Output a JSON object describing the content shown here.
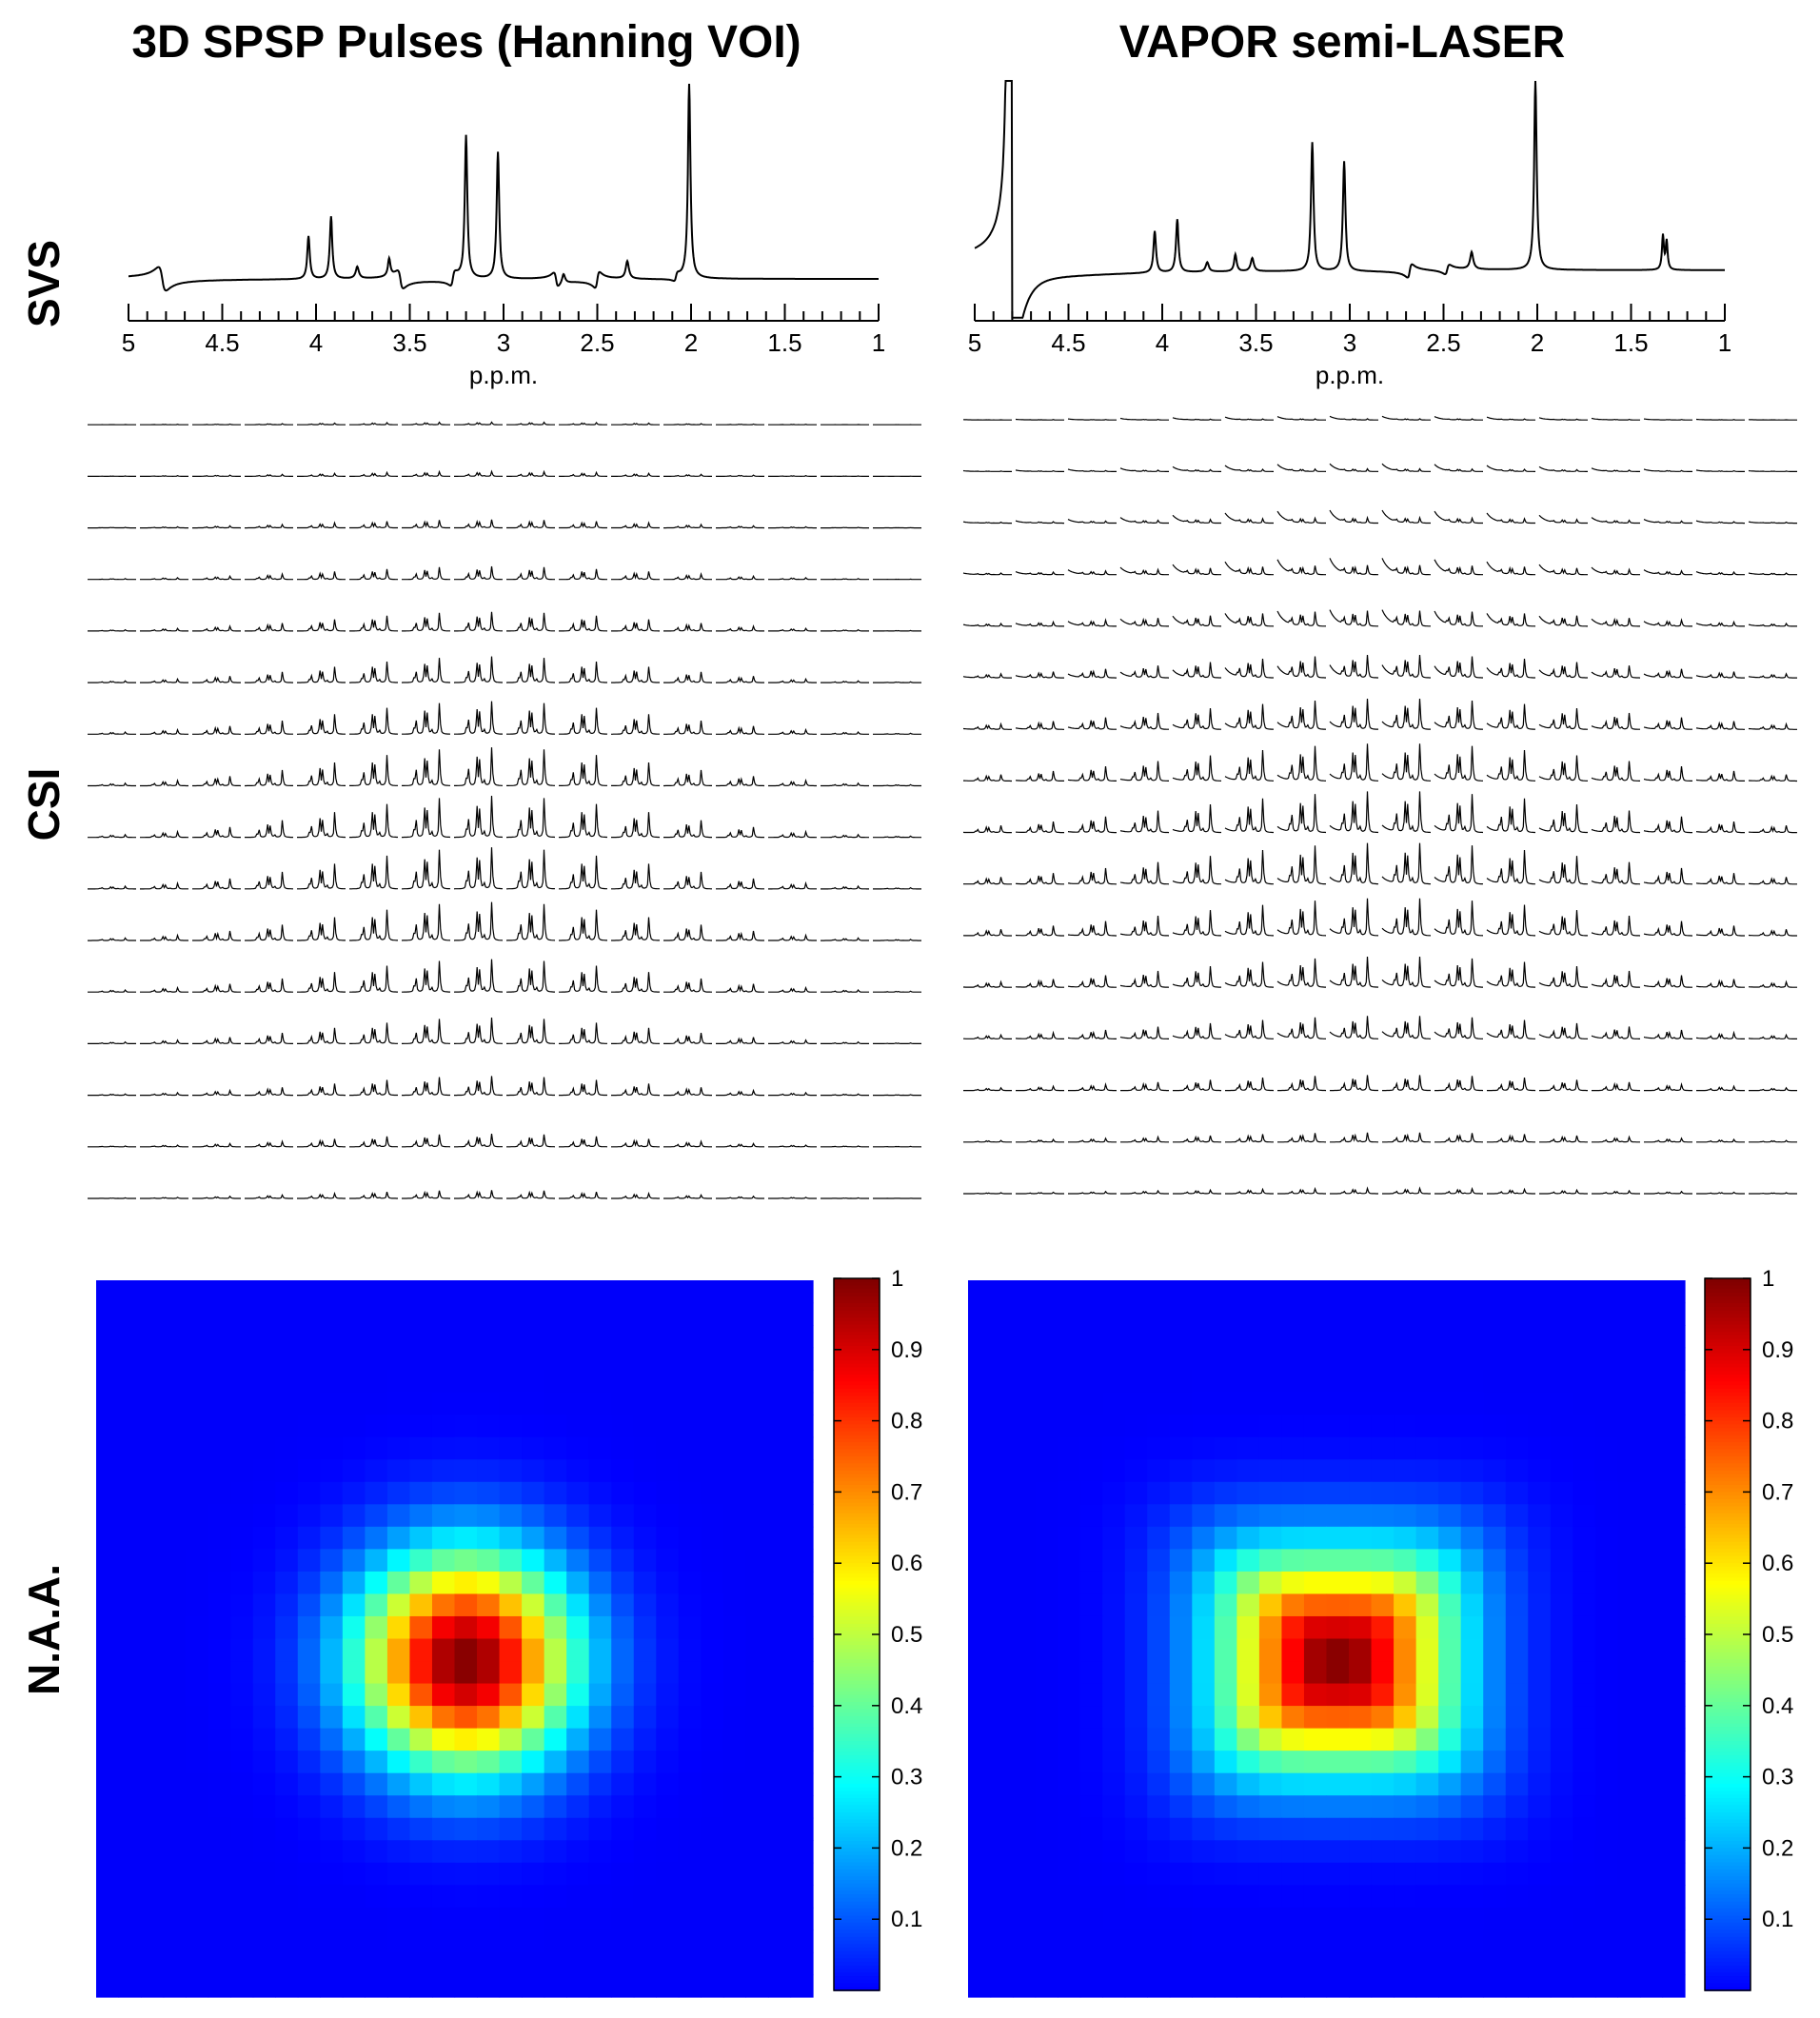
{
  "figure": {
    "columns": [
      {
        "title": "3D SPSP Pulses (Hanning VOI)"
      },
      {
        "title": "VAPOR semi-LASER"
      }
    ],
    "row_labels": [
      "SVS",
      "CSI",
      "N.A.A."
    ]
  },
  "chart_data": [
    {
      "type": "line",
      "panel": "SVS - 3D SPSP Pulses (Hanning VOI)",
      "xlabel": "p.p.m.",
      "xlim": [
        5,
        1
      ],
      "x_reversed": true,
      "xticks": [
        5,
        4.5,
        4,
        3.5,
        3,
        2.5,
        2,
        1.5,
        1
      ],
      "xtick_labels": [
        "5",
        "4.5",
        "4",
        "3.5",
        "3",
        "2.5",
        "2",
        "1.5",
        "1"
      ],
      "minor_tick_step": 0.1,
      "ylim": [
        -0.12,
        1.0
      ],
      "baseline": 0.0,
      "peaks": [
        {
          "ppm": 2.01,
          "height": 1.0,
          "width": 0.008
        },
        {
          "ppm": 3.03,
          "height": 0.65,
          "width": 0.008
        },
        {
          "ppm": 3.2,
          "height": 0.73,
          "width": 0.008
        },
        {
          "ppm": 3.92,
          "height": 0.32,
          "width": 0.008
        },
        {
          "ppm": 4.04,
          "height": 0.22,
          "width": 0.008
        },
        {
          "ppm": 3.78,
          "height": 0.06,
          "width": 0.01
        },
        {
          "ppm": 3.61,
          "height": 0.09,
          "width": 0.008
        },
        {
          "ppm": 2.34,
          "height": 0.09,
          "width": 0.01
        },
        {
          "ppm": 2.68,
          "height": 0.05,
          "width": 0.01
        }
      ],
      "dispersive": [
        {
          "ppm": 4.82,
          "amp": 0.12,
          "width": 0.02
        },
        {
          "ppm": 3.55,
          "amp": 0.09,
          "width": 0.015
        },
        {
          "ppm": 3.27,
          "amp": -0.07,
          "width": 0.012
        },
        {
          "ppm": 2.72,
          "amp": 0.07,
          "width": 0.012
        },
        {
          "ppm": 2.5,
          "amp": -0.08,
          "width": 0.012
        },
        {
          "ppm": 2.08,
          "amp": -0.04,
          "width": 0.01
        }
      ]
    },
    {
      "type": "line",
      "panel": "SVS - VAPOR semi-LASER",
      "xlabel": "p.p.m.",
      "xlim": [
        5,
        1
      ],
      "x_reversed": true,
      "xticks": [
        5,
        4.5,
        4,
        3.5,
        3,
        2.5,
        2,
        1.5,
        1
      ],
      "xtick_labels": [
        "5",
        "4.5",
        "4",
        "3.5",
        "3",
        "2.5",
        "2",
        "1.5",
        "1"
      ],
      "minor_tick_step": 0.1,
      "ylim": [
        -0.25,
        1.0
      ],
      "baseline": 0.0,
      "water_ppm": 4.82,
      "peaks": [
        {
          "ppm": 2.01,
          "height": 1.0,
          "width": 0.008
        },
        {
          "ppm": 3.03,
          "height": 0.58,
          "width": 0.008
        },
        {
          "ppm": 3.2,
          "height": 0.68,
          "width": 0.008
        },
        {
          "ppm": 3.92,
          "height": 0.28,
          "width": 0.008
        },
        {
          "ppm": 4.04,
          "height": 0.22,
          "width": 0.008
        },
        {
          "ppm": 1.33,
          "height": 0.18,
          "width": 0.006
        },
        {
          "ppm": 1.31,
          "height": 0.15,
          "width": 0.006
        },
        {
          "ppm": 3.61,
          "height": 0.09,
          "width": 0.008
        },
        {
          "ppm": 3.52,
          "height": 0.07,
          "width": 0.01
        },
        {
          "ppm": 2.35,
          "height": 0.09,
          "width": 0.01
        },
        {
          "ppm": 3.76,
          "height": 0.05,
          "width": 0.01
        }
      ],
      "dispersive": [
        {
          "ppm": 2.68,
          "amp": -0.07,
          "width": 0.012
        },
        {
          "ppm": 2.48,
          "amp": -0.05,
          "width": 0.012
        }
      ]
    },
    {
      "type": "line",
      "panel": "CSI - 3D SPSP Pulses (Hanning VOI)",
      "grid_rows": 16,
      "grid_cols": 16,
      "description": "16x16 grid of voxel spectra; signal concentrated in central region",
      "amplitude_center": {
        "row": 8.5,
        "col": 7.0
      },
      "amplitude_sigma": {
        "row": 3.6,
        "col": 3.0
      }
    },
    {
      "type": "line",
      "panel": "CSI - VAPOR semi-LASER",
      "grid_rows": 16,
      "grid_cols": 16,
      "description": "16x16 grid of voxel spectra with water tail residue in upper-central voxels",
      "amplitude_center": {
        "row": 8.5,
        "col": 7.5
      },
      "amplitude_sigma": {
        "row": 3.2,
        "col": 4.0
      }
    },
    {
      "type": "heatmap",
      "panel": "N.A.A. - 3D SPSP Pulses (Hanning VOI)",
      "grid_size": 32,
      "center": {
        "row": 16.5,
        "col": 16.0
      },
      "sigma": 3.4,
      "colormap": "jet",
      "clim": [
        0,
        1
      ],
      "colorbar_ticks": [
        0.1,
        0.2,
        0.3,
        0.4,
        0.5,
        0.6,
        0.7,
        0.8,
        0.9,
        1
      ],
      "colorbar_labels": [
        "0.1",
        "0.2",
        "0.3",
        "0.4",
        "0.5",
        "0.6",
        "0.7",
        "0.8",
        "0.9",
        "1"
      ]
    },
    {
      "type": "heatmap",
      "panel": "N.A.A. - VAPOR semi-LASER",
      "grid_size": 32,
      "center": {
        "row": 16.5,
        "col": 16.0
      },
      "sigma_row": 3.3,
      "sigma_col": 3.6,
      "flatness": 4,
      "colormap": "jet",
      "clim": [
        0,
        1
      ],
      "colorbar_ticks": [
        0.1,
        0.2,
        0.3,
        0.4,
        0.5,
        0.6,
        0.7,
        0.8,
        0.9,
        1
      ],
      "colorbar_labels": [
        "0.1",
        "0.2",
        "0.3",
        "0.4",
        "0.5",
        "0.6",
        "0.7",
        "0.8",
        "0.9",
        "1"
      ]
    }
  ]
}
